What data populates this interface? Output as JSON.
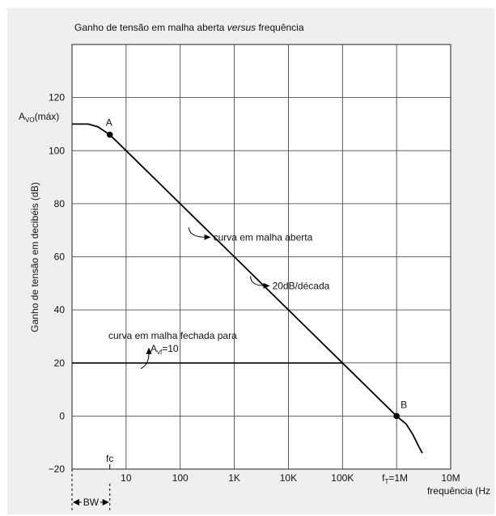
{
  "chart_data": {
    "type": "line",
    "title": "Ganho de tensão em malha aberta versus frequência",
    "title_parts": [
      "Ganho de tensão em malha aberta ",
      "versus",
      " frequência"
    ],
    "xlabel": "frequência (Hz",
    "ylabel": "Ganho de tensão em decibéis (dB)",
    "x_scale": "log",
    "xlim": [
      1,
      10000000
    ],
    "ylim": [
      -20,
      140
    ],
    "grid": true,
    "y_ticks": [
      {
        "value": -20,
        "label": "−20"
      },
      {
        "value": 0,
        "label": "0"
      },
      {
        "value": 20,
        "label": "20"
      },
      {
        "value": 40,
        "label": "40"
      },
      {
        "value": 60,
        "label": "60"
      },
      {
        "value": 80,
        "label": "80"
      },
      {
        "value": 100,
        "label": "100"
      },
      {
        "value": 120,
        "label": "120"
      }
    ],
    "x_ticks": [
      {
        "value": 10,
        "label": "10"
      },
      {
        "value": 100,
        "label": "100"
      },
      {
        "value": 1000,
        "label": "1K"
      },
      {
        "value": 10000,
        "label": "10K"
      },
      {
        "value": 100000,
        "label": "100K"
      },
      {
        "value": 10000000,
        "label": "10M"
      }
    ],
    "series": [
      {
        "name": "curva em malha aberta",
        "x": [
          1,
          2,
          3,
          5,
          10,
          100,
          1000,
          10000,
          100000,
          1000000,
          1500000,
          2000000,
          2500000,
          3000000
        ],
        "y": [
          110,
          110,
          109,
          106,
          100,
          80,
          60,
          40,
          20,
          0,
          -3,
          -7,
          -11,
          -14
        ]
      },
      {
        "name": "curva em malha fechada para",
        "x": [
          1,
          100000
        ],
        "y": [
          20,
          20
        ]
      }
    ],
    "points": [
      {
        "label": "A",
        "x": 5,
        "y": 106
      },
      {
        "label": "B",
        "x": 1000000,
        "y": 0
      }
    ],
    "annotations": {
      "avo_main": "A",
      "avo_sub": "VO",
      "avo_suffix": "(máx)",
      "open_loop_label": "curva em malha aberta",
      "slope_label": "20dB/década",
      "closed_loop_label": "curva em malha fechada para",
      "avf_main": "A",
      "avf_sub": "vf",
      "avf_suffix": "=10",
      "fc_label": "fc",
      "ft_main": "f",
      "ft_sub": "T",
      "ft_suffix": "=1M",
      "bw_label": "BW"
    }
  }
}
